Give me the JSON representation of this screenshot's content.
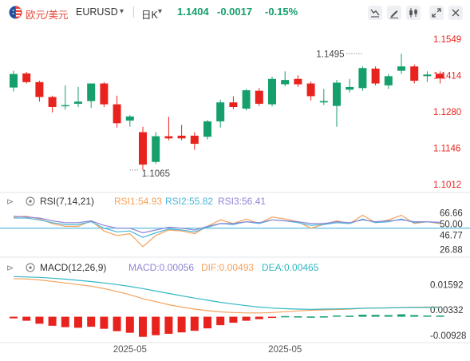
{
  "toolbar": {
    "symbol_name": "欧元/美元",
    "symbol_code": "EURUSD",
    "period": "日K",
    "last_price": "1.1404",
    "change": "-0.0017",
    "change_pct": "-0.15%",
    "icons": [
      "eurozone-flag-icon",
      "dropdown-caret-icon",
      "indicator-settings-icon",
      "draw-icon",
      "candle-type-icon",
      "expand-icon",
      "close-icon"
    ]
  },
  "colors": {
    "up": "#159f6b",
    "down": "#e8231e",
    "price_axis": "#e8231e",
    "rsi1": "#f4a25a",
    "rsi2": "#4ab6d8",
    "rsi3": "#8f86d6",
    "dif": "#f4a25a",
    "dea": "#33b8c4"
  },
  "chart_data": [
    {
      "type": "candlestick",
      "title": "",
      "ylim": [
        1.0985,
        1.1605
      ],
      "y_ticks": [
        "1.1549",
        "1.1414",
        "1.1280",
        "1.1146",
        "1.1012"
      ],
      "x_ticks": [
        "2025-05",
        "2025-05"
      ],
      "x_tick_positions": [
        9,
        21
      ],
      "annotations": [
        {
          "label": "1.1495",
          "index": 27,
          "value": 1.1495
        },
        {
          "label": "1.1065",
          "index": 9,
          "value": 1.1065
        }
      ],
      "candles": [
        {
          "open": 1.137,
          "high": 1.1432,
          "low": 1.1355,
          "close": 1.142
        },
        {
          "open": 1.1422,
          "high": 1.1428,
          "low": 1.1385,
          "close": 1.139
        },
        {
          "open": 1.139,
          "high": 1.1395,
          "low": 1.1318,
          "close": 1.1335
        },
        {
          "open": 1.1335,
          "high": 1.134,
          "low": 1.1278,
          "close": 1.1298
        },
        {
          "open": 1.1305,
          "high": 1.1378,
          "low": 1.1288,
          "close": 1.1305
        },
        {
          "open": 1.131,
          "high": 1.1372,
          "low": 1.1298,
          "close": 1.1318
        },
        {
          "open": 1.132,
          "high": 1.1385,
          "low": 1.1295,
          "close": 1.1385
        },
        {
          "open": 1.1385,
          "high": 1.139,
          "low": 1.1298,
          "close": 1.1308
        },
        {
          "open": 1.1308,
          "high": 1.134,
          "low": 1.1222,
          "close": 1.1238
        },
        {
          "open": 1.1248,
          "high": 1.1268,
          "low": 1.1225,
          "close": 1.1263
        },
        {
          "open": 1.1205,
          "high": 1.1225,
          "low": 1.1065,
          "close": 1.1085
        },
        {
          "open": 1.1095,
          "high": 1.1205,
          "low": 1.1088,
          "close": 1.119
        },
        {
          "open": 1.119,
          "high": 1.1262,
          "low": 1.1175,
          "close": 1.1182
        },
        {
          "open": 1.1192,
          "high": 1.1232,
          "low": 1.1175,
          "close": 1.1182
        },
        {
          "open": 1.1192,
          "high": 1.1205,
          "low": 1.114,
          "close": 1.1162
        },
        {
          "open": 1.1188,
          "high": 1.125,
          "low": 1.1178,
          "close": 1.1245
        },
        {
          "open": 1.1245,
          "high": 1.1325,
          "low": 1.1222,
          "close": 1.1315
        },
        {
          "open": 1.1315,
          "high": 1.1338,
          "low": 1.129,
          "close": 1.1298
        },
        {
          "open": 1.1292,
          "high": 1.1365,
          "low": 1.1285,
          "close": 1.136
        },
        {
          "open": 1.1358,
          "high": 1.1368,
          "low": 1.1302,
          "close": 1.131
        },
        {
          "open": 1.1308,
          "high": 1.141,
          "low": 1.13,
          "close": 1.1402
        },
        {
          "open": 1.1382,
          "high": 1.143,
          "low": 1.1375,
          "close": 1.1398
        },
        {
          "open": 1.1402,
          "high": 1.1415,
          "low": 1.1372,
          "close": 1.1382
        },
        {
          "open": 1.1385,
          "high": 1.1392,
          "low": 1.1322,
          "close": 1.1338
        },
        {
          "open": 1.1315,
          "high": 1.1365,
          "low": 1.1305,
          "close": 1.132
        },
        {
          "open": 1.1302,
          "high": 1.1398,
          "low": 1.1225,
          "close": 1.1388
        },
        {
          "open": 1.1362,
          "high": 1.1402,
          "low": 1.1352,
          "close": 1.1372
        },
        {
          "open": 1.1368,
          "high": 1.1448,
          "low": 1.1358,
          "close": 1.1442
        },
        {
          "open": 1.144,
          "high": 1.1448,
          "low": 1.1378,
          "close": 1.1385
        },
        {
          "open": 1.1378,
          "high": 1.142,
          "low": 1.1365,
          "close": 1.1412
        },
        {
          "open": 1.1432,
          "high": 1.1495,
          "low": 1.142,
          "close": 1.1448
        },
        {
          "open": 1.1448,
          "high": 1.1455,
          "low": 1.1385,
          "close": 1.1395
        },
        {
          "open": 1.1412,
          "high": 1.143,
          "low": 1.139,
          "close": 1.1418
        },
        {
          "open": 1.1421,
          "high": 1.143,
          "low": 1.1385,
          "close": 1.1404
        }
      ]
    },
    {
      "type": "line",
      "title": "RSI(7,14,21)",
      "legend": [
        {
          "name": "RSI1:54.93",
          "color": "#f4a25a"
        },
        {
          "name": "RSI2:55.82",
          "color": "#4ab6d8"
        },
        {
          "name": "RSI3:56.41",
          "color": "#8f86d6"
        }
      ],
      "ylim": [
        22,
        74
      ],
      "y_ticks": [
        "66.66",
        "50.00",
        "46.77",
        "26.88"
      ],
      "reference_line": 50,
      "series": [
        {
          "name": "RSI1",
          "values": [
            62,
            63,
            60,
            55,
            52,
            52,
            58,
            47,
            42,
            44,
            30,
            42,
            48,
            47,
            44,
            52,
            59,
            55,
            60,
            55,
            62,
            60,
            57,
            50,
            54,
            58,
            55,
            64,
            56,
            59,
            64,
            55,
            57,
            54.93
          ]
        },
        {
          "name": "RSI2",
          "values": [
            61,
            61,
            59,
            56,
            54,
            54,
            57,
            50,
            46,
            47,
            40,
            45,
            49,
            48,
            46,
            51,
            55,
            54,
            57,
            55,
            59,
            58,
            56,
            53,
            54,
            56,
            55,
            60,
            56,
            57,
            60,
            56,
            57,
            55.82
          ]
        },
        {
          "name": "RSI3",
          "values": [
            63,
            62,
            61,
            58,
            56,
            56,
            58,
            53,
            50,
            50,
            45,
            48,
            51,
            50,
            48,
            52,
            55,
            55,
            57,
            56,
            59,
            58,
            57,
            55,
            55,
            57,
            56,
            59,
            57,
            58,
            59,
            57,
            57,
            56.41
          ]
        }
      ]
    },
    {
      "type": "bar+line",
      "title": "MACD(12,26,9)",
      "legend": [
        {
          "name": "MACD:0.00056",
          "color": "#8f86d6"
        },
        {
          "name": "DIF:0.00493",
          "color": "#f4a25a"
        },
        {
          "name": "DEA:0.00465",
          "color": "#33b8c4"
        }
      ],
      "ylim": [
        -0.0125,
        0.0205
      ],
      "y_ticks": [
        "0.01592",
        "0.00332",
        "-0.00928"
      ],
      "series": [
        {
          "name": "MACD",
          "values": [
            -0.0008,
            -0.002,
            -0.0035,
            -0.0045,
            -0.0052,
            -0.0055,
            -0.005,
            -0.006,
            -0.0072,
            -0.008,
            -0.01,
            -0.0092,
            -0.0085,
            -0.0078,
            -0.007,
            -0.0058,
            -0.0042,
            -0.003,
            -0.002,
            -0.0012,
            -0.0003,
            0.0003,
            0.0002,
            0.0001,
            0.0002,
            0.0006,
            0.0005,
            0.001,
            0.0009,
            0.0008,
            0.0012,
            0.0008,
            0.0006,
            0.00056
          ]
        },
        {
          "name": "DIF",
          "values": [
            0.019,
            0.0188,
            0.0183,
            0.0176,
            0.0168,
            0.016,
            0.0152,
            0.014,
            0.0125,
            0.011,
            0.009,
            0.0075,
            0.006,
            0.0048,
            0.0038,
            0.003,
            0.0024,
            0.0021,
            0.0019,
            0.0019,
            0.0021,
            0.0025,
            0.0029,
            0.0032,
            0.0034,
            0.0036,
            0.0038,
            0.0042,
            0.0043,
            0.0044,
            0.0046,
            0.0047,
            0.0048,
            0.00493
          ]
        },
        {
          "name": "DEA",
          "values": [
            0.02,
            0.0198,
            0.0196,
            0.0192,
            0.0187,
            0.0181,
            0.0175,
            0.0168,
            0.016,
            0.0151,
            0.014,
            0.0128,
            0.0116,
            0.0104,
            0.0093,
            0.0082,
            0.0072,
            0.0063,
            0.0055,
            0.0048,
            0.0043,
            0.004,
            0.0038,
            0.0037,
            0.0038,
            0.0039,
            0.004,
            0.0042,
            0.0043,
            0.0044,
            0.0045,
            0.0046,
            0.0046,
            0.00465
          ]
        }
      ]
    }
  ]
}
